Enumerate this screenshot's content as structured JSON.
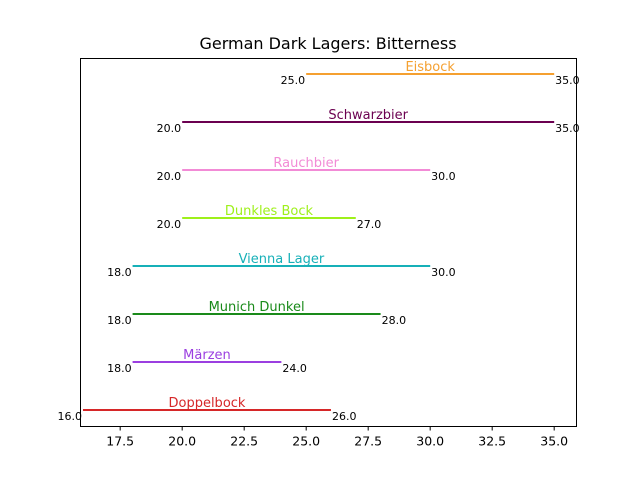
{
  "chart_data": {
    "type": "range-bar",
    "title": "German Dark Lagers: Bitterness",
    "xlabel": "",
    "ylabel": "",
    "xlim": [
      15.9,
      35.9
    ],
    "xticks": [
      "17.5",
      "20.0",
      "22.5",
      "25.0",
      "27.5",
      "30.0",
      "32.5",
      "35.0"
    ],
    "xtick_values": [
      17.5,
      20,
      22.5,
      25,
      27.5,
      30,
      32.5,
      35
    ],
    "grid": false,
    "legend": "none",
    "items": [
      {
        "name": "Doppelbock",
        "low": 16,
        "high": 26,
        "low_label": "16.0",
        "high_label": "26.0",
        "color": "#d62728"
      },
      {
        "name": "Märzen",
        "low": 18,
        "high": 24,
        "low_label": "18.0",
        "high_label": "24.0",
        "color": "#9b3fe0"
      },
      {
        "name": "Munich Dunkel",
        "low": 18,
        "high": 28,
        "low_label": "18.0",
        "high_label": "28.0",
        "color": "#1a8a1a"
      },
      {
        "name": "Vienna Lager",
        "low": 18,
        "high": 30,
        "low_label": "18.0",
        "high_label": "30.0",
        "color": "#17b0b8"
      },
      {
        "name": "Dunkles Bock",
        "low": 20,
        "high": 27,
        "low_label": "20.0",
        "high_label": "27.0",
        "color": "#9ef01a"
      },
      {
        "name": "Rauchbier",
        "low": 20,
        "high": 30,
        "low_label": "20.0",
        "high_label": "30.0",
        "color": "#f28bd6"
      },
      {
        "name": "Schwarzbier",
        "low": 20,
        "high": 35,
        "low_label": "20.0",
        "high_label": "35.0",
        "color": "#6b0050"
      },
      {
        "name": "Eisbock",
        "low": 25,
        "high": 35,
        "low_label": "25.0",
        "high_label": "35.0",
        "color": "#f5a030"
      }
    ]
  }
}
